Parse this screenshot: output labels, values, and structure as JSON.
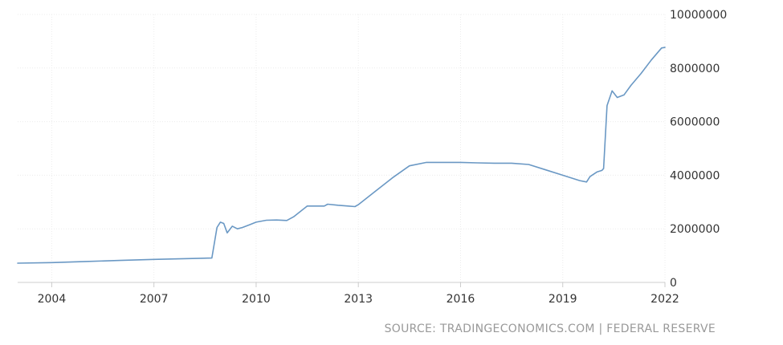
{
  "chart_data": {
    "type": "line",
    "title": "",
    "xlabel": "",
    "ylabel": "",
    "xlim": [
      2003.0,
      2022.0
    ],
    "ylim": [
      0,
      10000000
    ],
    "grid": true,
    "legend": "none",
    "x_ticks": [
      {
        "value": 2004,
        "label": "2004"
      },
      {
        "value": 2007,
        "label": "2007"
      },
      {
        "value": 2010,
        "label": "2010"
      },
      {
        "value": 2013,
        "label": "2013"
      },
      {
        "value": 2016,
        "label": "2016"
      },
      {
        "value": 2019,
        "label": "2019"
      },
      {
        "value": 2022,
        "label": "2022"
      }
    ],
    "y_ticks": [
      {
        "value": 0,
        "label": "0"
      },
      {
        "value": 2000000,
        "label": "2000000"
      },
      {
        "value": 4000000,
        "label": "4000000"
      },
      {
        "value": 6000000,
        "label": "6000000"
      },
      {
        "value": 8000000,
        "label": "8000000"
      },
      {
        "value": 10000000,
        "label": "10000000"
      }
    ],
    "series": [
      {
        "color": "#6a98c4",
        "points": [
          [
            2003.0,
            720000
          ],
          [
            2004.0,
            740000
          ],
          [
            2005.0,
            780000
          ],
          [
            2006.0,
            820000
          ],
          [
            2007.0,
            860000
          ],
          [
            2008.0,
            890000
          ],
          [
            2008.7,
            910000
          ],
          [
            2008.85,
            2050000
          ],
          [
            2008.95,
            2250000
          ],
          [
            2009.05,
            2200000
          ],
          [
            2009.15,
            1850000
          ],
          [
            2009.3,
            2100000
          ],
          [
            2009.45,
            2000000
          ],
          [
            2009.6,
            2050000
          ],
          [
            2009.8,
            2150000
          ],
          [
            2010.0,
            2250000
          ],
          [
            2010.3,
            2320000
          ],
          [
            2010.6,
            2330000
          ],
          [
            2010.9,
            2310000
          ],
          [
            2011.1,
            2450000
          ],
          [
            2011.5,
            2850000
          ],
          [
            2011.8,
            2850000
          ],
          [
            2012.0,
            2850000
          ],
          [
            2012.1,
            2920000
          ],
          [
            2012.4,
            2880000
          ],
          [
            2012.7,
            2850000
          ],
          [
            2012.9,
            2830000
          ],
          [
            2013.0,
            2900000
          ],
          [
            2013.5,
            3400000
          ],
          [
            2014.0,
            3900000
          ],
          [
            2014.5,
            4350000
          ],
          [
            2015.0,
            4480000
          ],
          [
            2015.5,
            4480000
          ],
          [
            2016.0,
            4480000
          ],
          [
            2016.5,
            4460000
          ],
          [
            2017.0,
            4450000
          ],
          [
            2017.5,
            4450000
          ],
          [
            2018.0,
            4400000
          ],
          [
            2018.5,
            4200000
          ],
          [
            2019.0,
            4000000
          ],
          [
            2019.5,
            3800000
          ],
          [
            2019.7,
            3750000
          ],
          [
            2019.8,
            3950000
          ],
          [
            2020.0,
            4120000
          ],
          [
            2020.15,
            4180000
          ],
          [
            2020.2,
            4250000
          ],
          [
            2020.3,
            6600000
          ],
          [
            2020.45,
            7150000
          ],
          [
            2020.6,
            6900000
          ],
          [
            2020.8,
            7000000
          ],
          [
            2021.0,
            7350000
          ],
          [
            2021.3,
            7800000
          ],
          [
            2021.6,
            8300000
          ],
          [
            2021.9,
            8750000
          ],
          [
            2022.0,
            8770000
          ]
        ]
      }
    ]
  },
  "source": "SOURCE: TRADINGECONOMICS.COM | FEDERAL RESERVE"
}
